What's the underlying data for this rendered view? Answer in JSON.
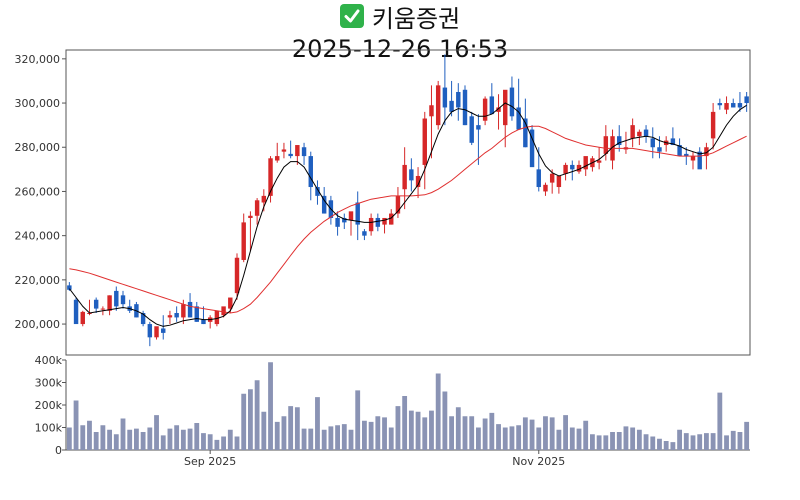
{
  "header": {
    "icon": "check-mark-icon",
    "title": "키움증권",
    "subtitle": "2025-12-26 16:53"
  },
  "colors": {
    "up": "#d62728",
    "down": "#1f5fbf",
    "ma_short": "#000000",
    "ma_long": "#e03030",
    "volume": "#8a93b4"
  },
  "chart_data": [
    {
      "type": "candlestick",
      "title": "",
      "ylim": [
        186000,
        324000
      ],
      "y_ticks": [
        "200,000",
        "220,000",
        "240,000",
        "260,000",
        "280,000",
        "300,000",
        "320,000"
      ],
      "y_tick_values": [
        200000,
        220000,
        240000,
        260000,
        280000,
        300000,
        320000
      ],
      "x_tick_labels": [
        "Sep 2025",
        "Nov 2025"
      ],
      "x_tick_index": [
        21,
        70
      ],
      "series": [
        {
          "key": "open",
          "values": [
            217500,
            211000,
            200000,
            205000,
            211000,
            207000,
            206000,
            215000,
            213000,
            208000,
            209000,
            205000,
            200000,
            194000,
            198000,
            203000,
            205000,
            203000,
            210000,
            208000,
            202000,
            201000,
            200000,
            204000,
            207000,
            214000,
            229000,
            248000,
            249000,
            255000,
            258000,
            274000,
            278000,
            277000,
            276000,
            280000,
            276000,
            262000,
            258000,
            256000,
            248000,
            248000,
            247000,
            255000,
            242000,
            242000,
            248000,
            245000,
            245000,
            250000,
            261000,
            270000,
            262000,
            272000,
            294000,
            290000,
            307000,
            301000,
            305000,
            306000,
            294000,
            290000,
            292000,
            303000,
            296000,
            290000,
            307000,
            298000,
            293000,
            288000,
            270000,
            260000,
            264000,
            262000,
            268000,
            272000,
            269000,
            270000,
            271000,
            273000,
            277000,
            274000,
            285000,
            279000,
            284000,
            285000,
            288000,
            284000,
            280000,
            281000,
            284000,
            281000,
            277000,
            274000,
            278000,
            276000,
            284000,
            300000,
            297000,
            300000,
            300000,
            303000
          ]
        },
        {
          "key": "high",
          "values": [
            219000,
            212000,
            206000,
            211000,
            212000,
            208000,
            213000,
            217000,
            215000,
            211000,
            210000,
            206000,
            201000,
            196000,
            204000,
            206000,
            208000,
            211000,
            214000,
            210000,
            208000,
            204000,
            206000,
            206000,
            209000,
            232000,
            250000,
            251000,
            257000,
            261000,
            276000,
            282000,
            282000,
            283000,
            280000,
            282000,
            278000,
            265000,
            262000,
            258000,
            251000,
            250000,
            250000,
            260000,
            243000,
            250000,
            250000,
            248000,
            252000,
            262000,
            280000,
            275000,
            271000,
            296000,
            308000,
            310000,
            322000,
            310000,
            309000,
            308000,
            296000,
            295000,
            303000,
            309000,
            304000,
            294000,
            312000,
            311000,
            302000,
            290000,
            280000,
            264000,
            270000,
            267000,
            273000,
            274000,
            274000,
            275000,
            276000,
            280000,
            290000,
            288000,
            290000,
            287000,
            293000,
            288000,
            290000,
            289000,
            285000,
            285000,
            289000,
            284000,
            280000,
            278000,
            280000,
            282000,
            300000,
            302000,
            303000,
            302000,
            305000,
            305000
          ]
        },
        {
          "key": "low",
          "values": [
            215000,
            202000,
            199000,
            204000,
            205000,
            204000,
            204000,
            206000,
            207000,
            205000,
            203000,
            199000,
            190000,
            193000,
            193000,
            200000,
            201000,
            200000,
            203000,
            201000,
            200000,
            198000,
            199000,
            203000,
            205000,
            211000,
            228000,
            233000,
            245000,
            251000,
            255000,
            273000,
            275000,
            275000,
            272000,
            272000,
            256000,
            254000,
            250000,
            245000,
            240000,
            243000,
            240000,
            238000,
            238000,
            240000,
            242000,
            241000,
            245000,
            248000,
            252000,
            260000,
            257000,
            261000,
            275000,
            288000,
            290000,
            294000,
            292000,
            290000,
            281000,
            272000,
            290000,
            296000,
            288000,
            280000,
            292000,
            291000,
            280000,
            276000,
            260000,
            258000,
            259000,
            259000,
            265000,
            265000,
            268000,
            267000,
            269000,
            270000,
            274000,
            270000,
            278000,
            277000,
            280000,
            281000,
            282000,
            275000,
            275000,
            278000,
            281000,
            276000,
            272000,
            270000,
            273000,
            270000,
            279000,
            297000,
            295000,
            298000,
            296000,
            296000
          ]
        },
        {
          "key": "close",
          "values": [
            215500,
            200000,
            205500,
            205000,
            207000,
            207000,
            213000,
            208000,
            209000,
            206000,
            203000,
            200000,
            194000,
            199000,
            196000,
            204000,
            203000,
            209000,
            203000,
            201000,
            200000,
            203000,
            206000,
            208000,
            212000,
            230000,
            246000,
            249000,
            256000,
            258000,
            275000,
            276000,
            279000,
            276000,
            281000,
            276000,
            262000,
            258000,
            250000,
            248000,
            244000,
            246000,
            251000,
            245000,
            240000,
            248000,
            244000,
            248000,
            250000,
            258000,
            272000,
            265000,
            267000,
            293000,
            299000,
            308000,
            298000,
            296000,
            298000,
            290000,
            282000,
            288000,
            302000,
            295000,
            298000,
            306000,
            294000,
            288000,
            280000,
            271000,
            262000,
            263000,
            268000,
            267000,
            272000,
            270000,
            272000,
            276000,
            275000,
            274000,
            285000,
            285000,
            281000,
            280000,
            290000,
            287000,
            285000,
            280000,
            278000,
            283000,
            281000,
            276000,
            276000,
            276000,
            270000,
            280000,
            296000,
            299000,
            300000,
            298000,
            298000,
            300000
          ]
        },
        {
          "key": "ma_short",
          "values": [
            216000,
            212000,
            208000,
            205000,
            205500,
            206000,
            206500,
            207000,
            207500,
            207000,
            206000,
            204500,
            202000,
            200000,
            199000,
            199500,
            200500,
            201500,
            202000,
            202500,
            202000,
            202000,
            202500,
            203500,
            206000,
            212000,
            222000,
            233000,
            244000,
            253000,
            260000,
            266000,
            271000,
            273500,
            273500,
            271000,
            266000,
            261000,
            256000,
            252000,
            249000,
            247500,
            247000,
            246500,
            246000,
            246000,
            246500,
            247000,
            248000,
            251000,
            255000,
            259000,
            263000,
            270000,
            278000,
            286000,
            292000,
            296000,
            297500,
            297000,
            295500,
            294000,
            294000,
            295000,
            297500,
            300000,
            298500,
            296000,
            291000,
            284000,
            277000,
            271500,
            268500,
            267000,
            268000,
            269000,
            270000,
            271500,
            273000,
            274500,
            277000,
            280000,
            282000,
            283000,
            284000,
            284500,
            285000,
            284500,
            283000,
            282000,
            281500,
            280500,
            279000,
            278000,
            277000,
            277500,
            280000,
            285000,
            290000,
            294000,
            297000,
            299000
          ]
        },
        {
          "key": "ma_long",
          "values": [
            225000,
            224500,
            223800,
            223000,
            222000,
            221000,
            220000,
            219000,
            218000,
            217000,
            216000,
            215000,
            214000,
            213000,
            212000,
            211000,
            210000,
            209000,
            208000,
            207500,
            207000,
            206500,
            206000,
            205500,
            205000,
            205500,
            207000,
            209000,
            212000,
            215500,
            219000,
            223000,
            227000,
            231000,
            235000,
            238500,
            241500,
            244000,
            246500,
            248500,
            250500,
            252000,
            253500,
            254500,
            255500,
            256500,
            257000,
            257500,
            258000,
            258000,
            258000,
            258000,
            258200,
            258500,
            259500,
            261000,
            263000,
            265000,
            267500,
            270000,
            272500,
            275000,
            277500,
            279500,
            282000,
            284500,
            286500,
            288000,
            289000,
            289500,
            289500,
            288500,
            287000,
            285500,
            284000,
            283000,
            282000,
            281000,
            280500,
            280000,
            279500,
            279500,
            279500,
            279500,
            279500,
            279000,
            278500,
            278000,
            277500,
            277000,
            276500,
            276000,
            276000,
            276000,
            276000,
            276500,
            277500,
            279000,
            280500,
            282000,
            283500,
            285000
          ]
        }
      ]
    },
    {
      "type": "bar",
      "title": "",
      "ylim": [
        0,
        400000
      ],
      "y_ticks": [
        "0",
        "100k",
        "200k",
        "300k",
        "400k"
      ],
      "y_tick_values": [
        0,
        100000,
        200000,
        300000,
        400000
      ],
      "x_tick_labels": [
        "Sep 2025",
        "Nov 2025"
      ],
      "series": [
        {
          "name": "Volume",
          "values": [
            100000,
            220000,
            110000,
            130000,
            80000,
            110000,
            90000,
            70000,
            140000,
            90000,
            95000,
            80000,
            100000,
            155000,
            65000,
            95000,
            110000,
            90000,
            95000,
            120000,
            75000,
            70000,
            45000,
            60000,
            90000,
            60000,
            250000,
            270000,
            310000,
            170000,
            390000,
            125000,
            150000,
            195000,
            190000,
            95000,
            95000,
            235000,
            90000,
            105000,
            110000,
            115000,
            90000,
            265000,
            130000,
            125000,
            150000,
            145000,
            100000,
            195000,
            240000,
            175000,
            170000,
            145000,
            175000,
            340000,
            260000,
            150000,
            190000,
            150000,
            150000,
            100000,
            140000,
            165000,
            115000,
            100000,
            105000,
            110000,
            145000,
            135000,
            100000,
            150000,
            145000,
            90000,
            155000,
            100000,
            95000,
            130000,
            70000,
            65000,
            65000,
            80000,
            80000,
            105000,
            100000,
            90000,
            70000,
            60000,
            50000,
            40000,
            35000,
            90000,
            75000,
            65000,
            70000,
            75000,
            75000,
            255000,
            65000,
            85000,
            80000,
            125000
          ]
        }
      ]
    }
  ]
}
